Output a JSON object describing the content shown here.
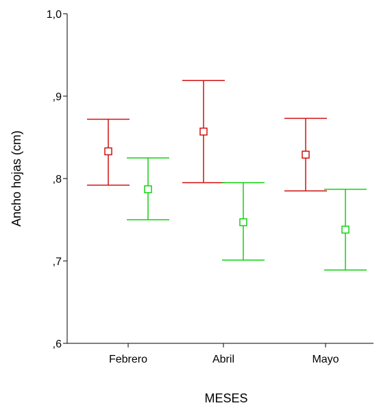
{
  "chart_data": {
    "type": "errorbar",
    "title": "",
    "xlabel": "MESES",
    "ylabel": "Ancho hojas (cm)",
    "categories": [
      "Febrero",
      "Abril",
      "Mayo"
    ],
    "ylim": [
      0.6,
      1.0
    ],
    "yticks": [
      {
        "value": 0.6,
        "label": ",6"
      },
      {
        "value": 0.7,
        "label": ",7"
      },
      {
        "value": 0.8,
        "label": ",8"
      },
      {
        "value": 0.9,
        "label": ",9"
      },
      {
        "value": 1.0,
        "label": "1,0"
      }
    ],
    "grid": false,
    "legend": "none",
    "series": [
      {
        "color": "#d01010",
        "points": [
          {
            "mean": 0.833,
            "lower": 0.792,
            "upper": 0.872
          },
          {
            "mean": 0.857,
            "lower": 0.795,
            "upper": 0.919
          },
          {
            "mean": 0.829,
            "lower": 0.785,
            "upper": 0.873
          }
        ]
      },
      {
        "color": "#10d010",
        "points": [
          {
            "mean": 0.787,
            "lower": 0.75,
            "upper": 0.825
          },
          {
            "mean": 0.747,
            "lower": 0.701,
            "upper": 0.795
          },
          {
            "mean": 0.738,
            "lower": 0.689,
            "upper": 0.787
          }
        ]
      }
    ]
  }
}
